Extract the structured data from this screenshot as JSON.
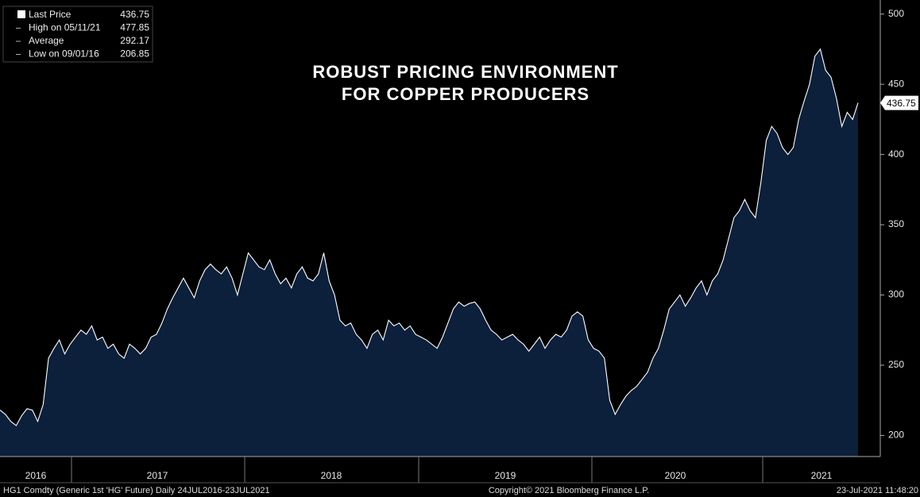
{
  "chart_data": {
    "type": "area",
    "title_lines": [
      "ROBUST PRICING ENVIRONMENT",
      "FOR COPPER PRODUCERS"
    ],
    "legend": [
      {
        "label": "Last Price",
        "value": 436.75
      },
      {
        "label": "High on 05/11/21",
        "value": 477.85
      },
      {
        "label": "Average",
        "value": 292.17
      },
      {
        "label": "Low on 09/01/16",
        "value": 206.85
      }
    ],
    "year_labels": [
      "2016",
      "2017",
      "2018",
      "2019",
      "2020",
      "2021"
    ],
    "values": [
      218,
      215,
      210,
      207,
      214,
      219,
      218,
      210,
      222,
      255,
      262,
      268,
      258,
      265,
      270,
      275,
      272,
      278,
      268,
      270,
      262,
      265,
      258,
      255,
      265,
      262,
      258,
      262,
      270,
      272,
      280,
      290,
      298,
      305,
      312,
      305,
      298,
      310,
      318,
      322,
      318,
      315,
      320,
      312,
      300,
      315,
      330,
      325,
      320,
      318,
      325,
      315,
      308,
      312,
      305,
      315,
      320,
      312,
      310,
      315,
      330,
      310,
      300,
      282,
      278,
      280,
      272,
      268,
      262,
      272,
      275,
      268,
      282,
      278,
      280,
      275,
      278,
      272,
      270,
      268,
      265,
      262,
      270,
      280,
      290,
      295,
      292,
      294,
      295,
      290,
      282,
      275,
      272,
      268,
      270,
      272,
      268,
      265,
      260,
      265,
      270,
      262,
      268,
      272,
      270,
      275,
      285,
      288,
      285,
      268,
      262,
      260,
      255,
      225,
      215,
      222,
      228,
      232,
      235,
      240,
      245,
      255,
      262,
      275,
      290,
      295,
      300,
      292,
      298,
      305,
      310,
      300,
      310,
      315,
      325,
      340,
      355,
      360,
      368,
      360,
      355,
      380,
      410,
      420,
      415,
      405,
      400,
      405,
      425,
      438,
      450,
      470,
      475,
      460,
      455,
      440,
      420,
      430,
      425,
      436.75
    ],
    "line_color": "#ffffff",
    "fill_color": "#0c1f3b",
    "ylim": [
      185,
      510
    ],
    "yticks": [
      200,
      250,
      300,
      350,
      400,
      450,
      500
    ],
    "footer_left": "HG1 Comdty (Generic 1st 'HG' Future)  Daily 24JUL2016-23JUL2021",
    "footer_center": "Copyright© 2021 Bloomberg Finance L.P.",
    "footer_right": "23-Jul-2021 11:48:20"
  }
}
